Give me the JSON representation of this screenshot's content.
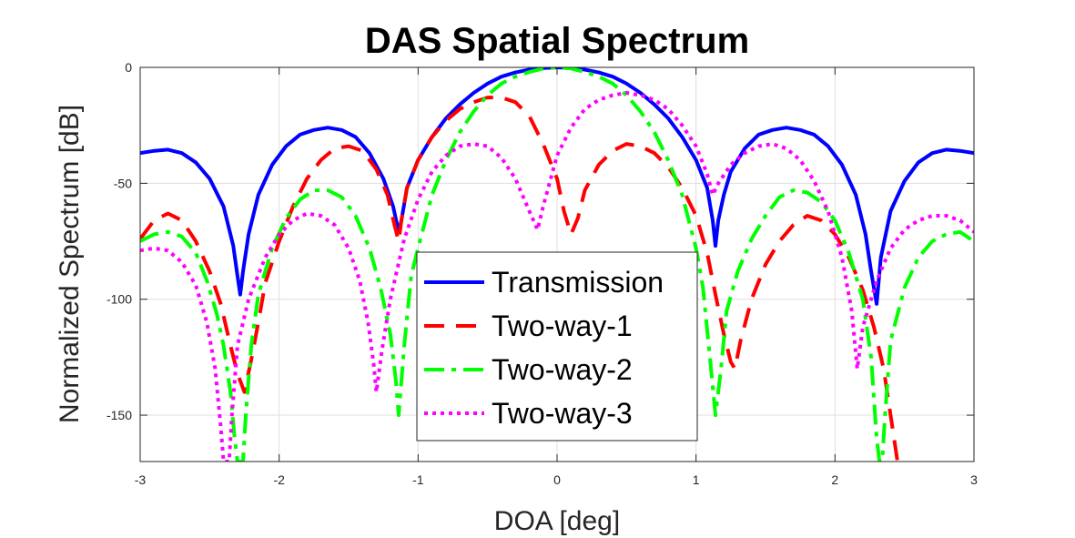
{
  "chart_data": {
    "type": "line",
    "title": "DAS Spatial Spectrum",
    "xlabel": "DOA [deg]",
    "ylabel": "Normalized Spectrum [dB]",
    "xlim": [
      -3,
      3
    ],
    "ylim": [
      -170,
      0
    ],
    "xticks": [
      -3,
      -2,
      -1,
      0,
      1,
      2,
      3
    ],
    "yticks": [
      0,
      -50,
      -100,
      -150
    ],
    "grid": true,
    "legend_position": "bottom-center",
    "series": [
      {
        "name": "Transmission",
        "color": "#0000ff",
        "style": "solid",
        "points": [
          [
            -3,
            -37
          ],
          [
            -2.9,
            -36
          ],
          [
            -2.8,
            -35.5
          ],
          [
            -2.7,
            -37
          ],
          [
            -2.6,
            -41
          ],
          [
            -2.5,
            -48
          ],
          [
            -2.4,
            -60
          ],
          [
            -2.33,
            -77
          ],
          [
            -2.3,
            -90
          ],
          [
            -2.28,
            -98
          ],
          [
            -2.26,
            -88
          ],
          [
            -2.22,
            -72
          ],
          [
            -2.15,
            -55
          ],
          [
            -2.05,
            -42
          ],
          [
            -1.95,
            -34
          ],
          [
            -1.85,
            -29
          ],
          [
            -1.75,
            -27
          ],
          [
            -1.65,
            -26
          ],
          [
            -1.55,
            -27
          ],
          [
            -1.45,
            -30
          ],
          [
            -1.35,
            -37
          ],
          [
            -1.25,
            -48
          ],
          [
            -1.18,
            -60
          ],
          [
            -1.14,
            -71
          ],
          [
            -1.12,
            -66
          ],
          [
            -1.08,
            -52
          ],
          [
            -1.0,
            -40
          ],
          [
            -0.9,
            -30
          ],
          [
            -0.8,
            -22
          ],
          [
            -0.7,
            -16
          ],
          [
            -0.6,
            -11
          ],
          [
            -0.5,
            -7
          ],
          [
            -0.4,
            -4
          ],
          [
            -0.3,
            -2.2
          ],
          [
            -0.2,
            -1
          ],
          [
            -0.1,
            -0.3
          ],
          [
            0,
            0
          ],
          [
            0.1,
            -0.3
          ],
          [
            0.2,
            -1
          ],
          [
            0.3,
            -2.2
          ],
          [
            0.4,
            -4
          ],
          [
            0.5,
            -7
          ],
          [
            0.6,
            -11
          ],
          [
            0.7,
            -16
          ],
          [
            0.8,
            -22
          ],
          [
            0.9,
            -30
          ],
          [
            1.0,
            -40
          ],
          [
            1.08,
            -52
          ],
          [
            1.12,
            -66
          ],
          [
            1.14,
            -77
          ],
          [
            1.16,
            -66
          ],
          [
            1.2,
            -55
          ],
          [
            1.25,
            -45
          ],
          [
            1.35,
            -35
          ],
          [
            1.45,
            -29
          ],
          [
            1.55,
            -27
          ],
          [
            1.65,
            -26
          ],
          [
            1.75,
            -27
          ],
          [
            1.85,
            -29
          ],
          [
            1.95,
            -34
          ],
          [
            2.05,
            -42
          ],
          [
            2.15,
            -55
          ],
          [
            2.22,
            -72
          ],
          [
            2.26,
            -88
          ],
          [
            2.3,
            -102
          ],
          [
            2.33,
            -82
          ],
          [
            2.4,
            -62
          ],
          [
            2.5,
            -49
          ],
          [
            2.6,
            -41
          ],
          [
            2.7,
            -37
          ],
          [
            2.8,
            -35.5
          ],
          [
            2.9,
            -36
          ],
          [
            3,
            -37
          ]
        ]
      },
      {
        "name": "Two-way-1",
        "color": "#ff0000",
        "style": "dash",
        "points": [
          [
            -3,
            -74
          ],
          [
            -2.9,
            -66
          ],
          [
            -2.8,
            -63
          ],
          [
            -2.7,
            -66
          ],
          [
            -2.6,
            -75
          ],
          [
            -2.5,
            -88
          ],
          [
            -2.42,
            -102
          ],
          [
            -2.35,
            -120
          ],
          [
            -2.3,
            -132
          ],
          [
            -2.25,
            -140
          ],
          [
            -2.2,
            -126
          ],
          [
            -2.15,
            -110
          ],
          [
            -2.1,
            -93
          ],
          [
            -2.0,
            -75
          ],
          [
            -1.9,
            -60
          ],
          [
            -1.8,
            -48
          ],
          [
            -1.7,
            -40
          ],
          [
            -1.6,
            -35
          ],
          [
            -1.5,
            -34
          ],
          [
            -1.4,
            -36
          ],
          [
            -1.3,
            -44
          ],
          [
            -1.22,
            -55
          ],
          [
            -1.17,
            -68
          ],
          [
            -1.14,
            -75
          ],
          [
            -1.12,
            -66
          ],
          [
            -1.08,
            -52
          ],
          [
            -1.0,
            -40
          ],
          [
            -0.9,
            -30
          ],
          [
            -0.8,
            -23
          ],
          [
            -0.7,
            -18
          ],
          [
            -0.6,
            -15
          ],
          [
            -0.5,
            -13
          ],
          [
            -0.4,
            -13
          ],
          [
            -0.3,
            -15
          ],
          [
            -0.2,
            -21
          ],
          [
            -0.1,
            -33
          ],
          [
            0,
            -48
          ],
          [
            0.05,
            -62
          ],
          [
            0.1,
            -72
          ],
          [
            0.15,
            -65
          ],
          [
            0.2,
            -53
          ],
          [
            0.3,
            -42
          ],
          [
            0.4,
            -36
          ],
          [
            0.5,
            -33
          ],
          [
            0.6,
            -34
          ],
          [
            0.7,
            -37
          ],
          [
            0.8,
            -43
          ],
          [
            0.9,
            -52
          ],
          [
            1.0,
            -64
          ],
          [
            1.08,
            -80
          ],
          [
            1.14,
            -98
          ],
          [
            1.2,
            -115
          ],
          [
            1.25,
            -127
          ],
          [
            1.28,
            -130
          ],
          [
            1.32,
            -118
          ],
          [
            1.4,
            -100
          ],
          [
            1.5,
            -85
          ],
          [
            1.6,
            -75
          ],
          [
            1.7,
            -68
          ],
          [
            1.8,
            -64
          ],
          [
            1.9,
            -66
          ],
          [
            2.0,
            -72
          ],
          [
            2.1,
            -82
          ],
          [
            2.2,
            -96
          ],
          [
            2.28,
            -112
          ],
          [
            2.35,
            -130
          ],
          [
            2.4,
            -150
          ],
          [
            2.45,
            -170
          ]
        ]
      },
      {
        "name": "Two-way-2",
        "color": "#00ff00",
        "style": "dashdot",
        "points": [
          [
            -3,
            -75
          ],
          [
            -2.9,
            -72
          ],
          [
            -2.8,
            -71
          ],
          [
            -2.7,
            -73
          ],
          [
            -2.6,
            -80
          ],
          [
            -2.52,
            -92
          ],
          [
            -2.45,
            -106
          ],
          [
            -2.4,
            -120
          ],
          [
            -2.35,
            -140
          ],
          [
            -2.32,
            -160
          ],
          [
            -2.3,
            -170
          ],
          [
            -2.26,
            -170
          ],
          [
            -2.24,
            -150
          ],
          [
            -2.2,
            -120
          ],
          [
            -2.15,
            -98
          ],
          [
            -2.05,
            -78
          ],
          [
            -1.95,
            -65
          ],
          [
            -1.85,
            -57
          ],
          [
            -1.75,
            -53
          ],
          [
            -1.65,
            -53
          ],
          [
            -1.55,
            -56
          ],
          [
            -1.45,
            -64
          ],
          [
            -1.35,
            -78
          ],
          [
            -1.27,
            -95
          ],
          [
            -1.2,
            -115
          ],
          [
            -1.16,
            -135
          ],
          [
            -1.14,
            -150
          ],
          [
            -1.1,
            -120
          ],
          [
            -1.05,
            -90
          ],
          [
            -1.0,
            -78
          ],
          [
            -0.9,
            -55
          ],
          [
            -0.8,
            -40
          ],
          [
            -0.7,
            -28
          ],
          [
            -0.6,
            -19
          ],
          [
            -0.5,
            -12
          ],
          [
            -0.4,
            -7
          ],
          [
            -0.3,
            -4
          ],
          [
            -0.2,
            -2
          ],
          [
            -0.1,
            -0.5
          ],
          [
            0,
            0
          ],
          [
            0.1,
            -0.5
          ],
          [
            0.2,
            -2
          ],
          [
            0.3,
            -4
          ],
          [
            0.4,
            -7
          ],
          [
            0.5,
            -12
          ],
          [
            0.6,
            -19
          ],
          [
            0.7,
            -28
          ],
          [
            0.8,
            -40
          ],
          [
            0.9,
            -55
          ],
          [
            1.0,
            -78
          ],
          [
            1.05,
            -95
          ],
          [
            1.1,
            -125
          ],
          [
            1.14,
            -150
          ],
          [
            1.18,
            -130
          ],
          [
            1.22,
            -105
          ],
          [
            1.3,
            -88
          ],
          [
            1.4,
            -74
          ],
          [
            1.5,
            -64
          ],
          [
            1.6,
            -56
          ],
          [
            1.7,
            -53
          ],
          [
            1.8,
            -54
          ],
          [
            1.9,
            -58
          ],
          [
            2.0,
            -66
          ],
          [
            2.1,
            -80
          ],
          [
            2.2,
            -100
          ],
          [
            2.26,
            -125
          ],
          [
            2.3,
            -160
          ],
          [
            2.32,
            -170
          ],
          [
            2.34,
            -170
          ],
          [
            2.36,
            -150
          ],
          [
            2.4,
            -118
          ],
          [
            2.5,
            -95
          ],
          [
            2.6,
            -82
          ],
          [
            2.7,
            -75
          ],
          [
            2.8,
            -72
          ],
          [
            2.9,
            -71
          ],
          [
            3,
            -75
          ]
        ]
      },
      {
        "name": "Two-way-3",
        "color": "#ff00ff",
        "style": "dot",
        "points": [
          [
            -3,
            -79
          ],
          [
            -2.9,
            -78
          ],
          [
            -2.8,
            -79
          ],
          [
            -2.7,
            -84
          ],
          [
            -2.6,
            -94
          ],
          [
            -2.52,
            -110
          ],
          [
            -2.46,
            -130
          ],
          [
            -2.42,
            -155
          ],
          [
            -2.4,
            -170
          ],
          [
            -2.36,
            -170
          ],
          [
            -2.34,
            -150
          ],
          [
            -2.3,
            -120
          ],
          [
            -2.22,
            -100
          ],
          [
            -2.1,
            -82
          ],
          [
            -2.0,
            -72
          ],
          [
            -1.9,
            -66
          ],
          [
            -1.8,
            -63
          ],
          [
            -1.7,
            -64
          ],
          [
            -1.6,
            -68
          ],
          [
            -1.5,
            -78
          ],
          [
            -1.42,
            -92
          ],
          [
            -1.36,
            -110
          ],
          [
            -1.32,
            -128
          ],
          [
            -1.3,
            -140
          ],
          [
            -1.26,
            -122
          ],
          [
            -1.2,
            -100
          ],
          [
            -1.1,
            -74
          ],
          [
            -1.0,
            -57
          ],
          [
            -0.9,
            -45
          ],
          [
            -0.8,
            -38
          ],
          [
            -0.7,
            -34
          ],
          [
            -0.6,
            -33
          ],
          [
            -0.5,
            -34
          ],
          [
            -0.4,
            -39
          ],
          [
            -0.3,
            -48
          ],
          [
            -0.2,
            -62
          ],
          [
            -0.14,
            -70
          ],
          [
            -0.1,
            -60
          ],
          [
            0,
            -38
          ],
          [
            0.1,
            -26
          ],
          [
            0.2,
            -18
          ],
          [
            0.3,
            -14
          ],
          [
            0.4,
            -12
          ],
          [
            0.5,
            -11
          ],
          [
            0.6,
            -12
          ],
          [
            0.7,
            -14
          ],
          [
            0.8,
            -18
          ],
          [
            0.9,
            -25
          ],
          [
            1.0,
            -34
          ],
          [
            1.08,
            -46
          ],
          [
            1.12,
            -55
          ],
          [
            1.16,
            -50
          ],
          [
            1.25,
            -42
          ],
          [
            1.35,
            -37
          ],
          [
            1.45,
            -34
          ],
          [
            1.55,
            -33
          ],
          [
            1.65,
            -35
          ],
          [
            1.75,
            -40
          ],
          [
            1.85,
            -49
          ],
          [
            1.95,
            -62
          ],
          [
            2.05,
            -82
          ],
          [
            2.12,
            -105
          ],
          [
            2.16,
            -130
          ],
          [
            2.2,
            -112
          ],
          [
            2.3,
            -92
          ],
          [
            2.4,
            -78
          ],
          [
            2.5,
            -70
          ],
          [
            2.6,
            -66
          ],
          [
            2.7,
            -64
          ],
          [
            2.8,
            -64
          ],
          [
            2.9,
            -66
          ],
          [
            3,
            -71
          ]
        ]
      }
    ]
  }
}
